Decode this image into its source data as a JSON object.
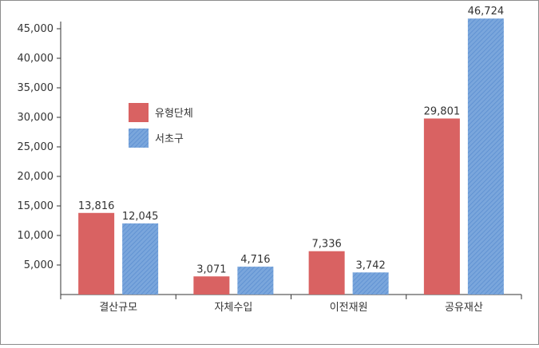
{
  "chart_data": {
    "type": "bar",
    "categories": [
      "결산규모",
      "자체수입",
      "이전재원",
      "공유재산"
    ],
    "series": [
      {
        "name": "유형단체",
        "values": [
          13816,
          3071,
          7336,
          29801
        ],
        "labels": [
          "13,816",
          "3,071",
          "7,336",
          "29,801"
        ]
      },
      {
        "name": "서초구",
        "values": [
          12045,
          4716,
          3742,
          46724
        ],
        "labels": [
          "12,045",
          "4,716",
          "3,742",
          "46,724"
        ]
      }
    ],
    "yticks": [
      "5,000",
      "10,000",
      "15,000",
      "20,000",
      "25,000",
      "30,000",
      "35,000",
      "40,000",
      "45,000"
    ],
    "ylim": [
      0,
      45000
    ],
    "title": "",
    "xlabel": "",
    "ylabel": "",
    "legend_position": "upper-left",
    "grid": false,
    "colors": {
      "series1": "#d96262",
      "series2": "#7aa6dc",
      "series2_stripe": "#5b8ed0",
      "axis": "#333333"
    }
  }
}
